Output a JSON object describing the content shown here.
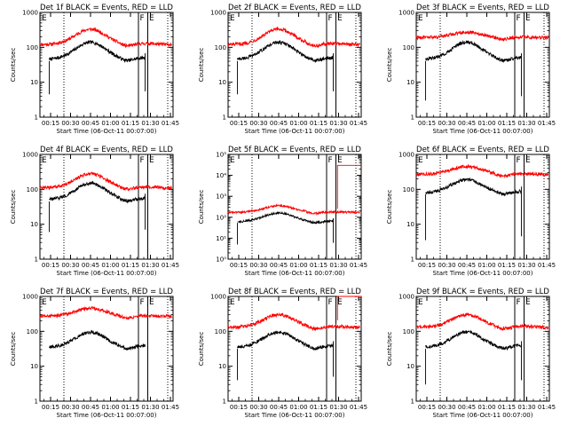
{
  "figure": {
    "ylabel": "Counts/sec",
    "xlabel": "Start Time (06-Oct-11 00:07:00)",
    "x_ticks": [
      "00:15",
      "00:30",
      "00:45",
      "01:00",
      "01:15",
      "01:30",
      "01:45"
    ],
    "x_tick_minutes": [
      15,
      30,
      45,
      60,
      75,
      90,
      105
    ],
    "x_range_minutes": [
      7,
      107
    ],
    "markers": [
      "F",
      "E"
    ],
    "colors": {
      "events": "#000000",
      "lld": "#ff0000",
      "axes": "#000000"
    }
  },
  "chart_data": [
    {
      "type": "line",
      "title": "Det 1f BLACK = Events, RED = LLD",
      "yscale": "log",
      "ylim": [
        1,
        1000
      ],
      "ytick_labels": [
        "1",
        "10",
        "100",
        "1000"
      ],
      "dotted_x": [
        25,
        103
      ],
      "solid_x": [
        81,
        88
      ],
      "marker_x": [
        81,
        88
      ],
      "events_start": 14,
      "events_end": 86,
      "events_mid": 140,
      "events_low": 45,
      "events_ratio": 2.1,
      "events_spike": 4.5,
      "lld_start": 7,
      "lld_end": 106,
      "lld_mid": 330,
      "lld_low": 120,
      "lld_ratio": 1.6,
      "lld_spike": null
    },
    {
      "type": "line",
      "title": "Det 2f BLACK = Events, RED = LLD",
      "yscale": "log",
      "ylim": [
        1,
        1000
      ],
      "ytick_labels": [
        "1",
        "10",
        "100",
        "1000"
      ],
      "dotted_x": [
        25,
        103
      ],
      "solid_x": [
        81,
        88
      ],
      "marker_x": [
        81,
        88
      ],
      "events_start": 14,
      "events_end": 86,
      "events_mid": 140,
      "events_low": 45,
      "events_ratio": 2.1,
      "events_spike": 4.5,
      "lld_start": 7,
      "lld_end": 106,
      "lld_mid": 330,
      "lld_low": 120,
      "lld_ratio": 1.6,
      "lld_spike": null
    },
    {
      "type": "line",
      "title": "Det 3f BLACK = Events, RED = LLD",
      "yscale": "log",
      "ylim": [
        1,
        1000
      ],
      "ytick_labels": [
        "1",
        "10",
        "100",
        "1000"
      ],
      "dotted_x": [
        25,
        103
      ],
      "solid_x": [
        81,
        88
      ],
      "marker_x": [
        81,
        88
      ],
      "events_start": 14,
      "events_end": 86,
      "events_mid": 140,
      "events_low": 45,
      "events_ratio": 2.1,
      "events_spike": 3.0,
      "lld_start": 7,
      "lld_end": 106,
      "lld_mid": 270,
      "lld_low": 190,
      "lld_ratio": 1.3,
      "lld_spike": null
    },
    {
      "type": "line",
      "title": "Det 4f BLACK = Events, RED = LLD",
      "yscale": "log",
      "ylim": [
        1,
        1000
      ],
      "ytick_labels": [
        "1",
        "10",
        "100",
        "1000"
      ],
      "dotted_x": [
        25,
        103
      ],
      "solid_x": [
        81,
        88
      ],
      "marker_x": [
        81,
        88
      ],
      "events_start": 14,
      "events_end": 86,
      "events_mid": 150,
      "events_low": 50,
      "events_ratio": 2.0,
      "events_spike": 6.0,
      "lld_start": 7,
      "lld_end": 106,
      "lld_mid": 280,
      "lld_low": 110,
      "lld_ratio": 1.6,
      "lld_spike": null
    },
    {
      "type": "line",
      "title": "Det 5f BLACK = Events, RED = LLD",
      "yscale": "log",
      "ylim": [
        1,
        100000
      ],
      "ytick_labels": [
        "10⁰",
        "10¹",
        "10²",
        "10³",
        "10⁴",
        "10⁵"
      ],
      "dotted_x": [
        25,
        103
      ],
      "solid_x": [
        81,
        88
      ],
      "marker_x": [
        81,
        88
      ],
      "events_start": 14,
      "events_end": 86,
      "events_mid": 160,
      "events_low": 60,
      "events_ratio": 1.8,
      "events_spike": 5.0,
      "lld_start": 7,
      "lld_end": 106,
      "lld_mid": 350,
      "lld_low": 170,
      "lld_ratio": 1.5,
      "lld_spike": 30000
    },
    {
      "type": "line",
      "title": "Det 6f BLACK = Events, RED = LLD",
      "yscale": "log",
      "ylim": [
        1,
        1000
      ],
      "ytick_labels": [
        "1",
        "10",
        "100",
        "1000"
      ],
      "dotted_x": [
        25,
        103
      ],
      "solid_x": [
        81,
        88
      ],
      "marker_x": [
        81,
        88
      ],
      "events_start": 14,
      "events_end": 86,
      "events_mid": 190,
      "events_low": 80,
      "events_ratio": 1.8,
      "events_spike": 3.5,
      "lld_start": 7,
      "lld_end": 106,
      "lld_mid": 450,
      "lld_low": 270,
      "lld_ratio": 1.2,
      "lld_spike": null
    },
    {
      "type": "line",
      "title": "Det 7f BLACK = Events, RED = LLD",
      "yscale": "log",
      "ylim": [
        1,
        1000
      ],
      "ytick_labels": [
        "1",
        "10",
        "100",
        "1000"
      ],
      "dotted_x": [
        25,
        103
      ],
      "solid_x": [
        81,
        88
      ],
      "marker_x": [
        81,
        88
      ],
      "events_start": 14,
      "events_end": 86,
      "events_mid": 95,
      "events_low": 35,
      "events_ratio": 2.3,
      "events_spike": null,
      "lld_start": 7,
      "lld_end": 106,
      "lld_mid": 460,
      "lld_low": 270,
      "lld_ratio": 1.3,
      "lld_spike": null
    },
    {
      "type": "line",
      "title": "Det 8f BLACK = Events, RED = LLD",
      "yscale": "log",
      "ylim": [
        1,
        1000
      ],
      "ytick_labels": [
        "1",
        "10",
        "100",
        "1000"
      ],
      "dotted_x": [
        25,
        103
      ],
      "solid_x": [
        81,
        88
      ],
      "marker_x": [
        81,
        88
      ],
      "events_start": 14,
      "events_end": 86,
      "events_mid": 95,
      "events_low": 35,
      "events_ratio": 2.3,
      "events_spike": 4.0,
      "lld_start": 7,
      "lld_end": 106,
      "lld_mid": 300,
      "lld_low": 130,
      "lld_ratio": 1.6,
      "lld_spike": 1000
    },
    {
      "type": "line",
      "title": "Det 9f BLACK = Events, RED = LLD",
      "yscale": "log",
      "ylim": [
        1,
        1000
      ],
      "ytick_labels": [
        "1",
        "10",
        "100",
        "1000"
      ],
      "dotted_x": [
        25,
        103
      ],
      "solid_x": [
        81,
        88
      ],
      "marker_x": [
        81,
        88
      ],
      "events_start": 14,
      "events_end": 86,
      "events_mid": 95,
      "events_low": 35,
      "events_ratio": 2.3,
      "events_spike": 3.0,
      "lld_start": 7,
      "lld_end": 106,
      "lld_mid": 300,
      "lld_low": 130,
      "lld_ratio": 1.6,
      "lld_spike": null
    }
  ]
}
